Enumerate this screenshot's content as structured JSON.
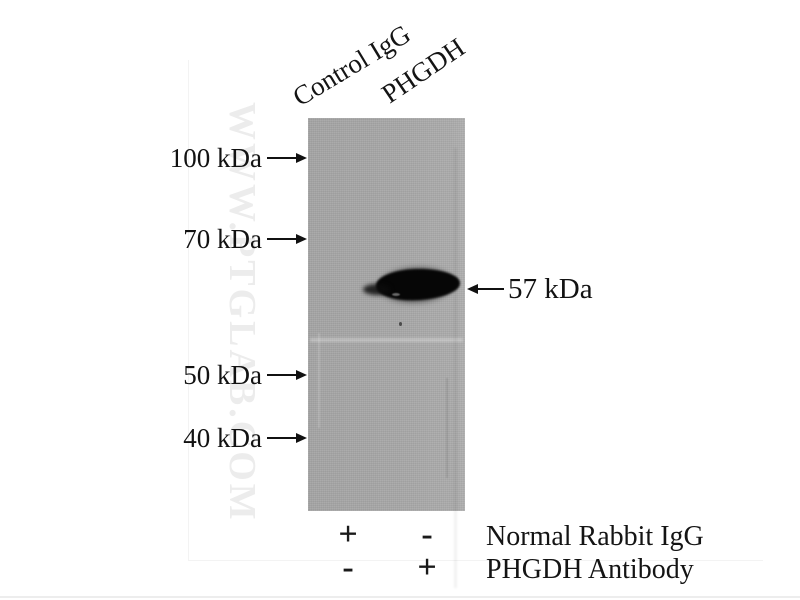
{
  "figure": {
    "type": "western-blot",
    "lane_labels": [
      {
        "label": "Control IgG"
      },
      {
        "label": "PHGDH"
      }
    ],
    "markers": [
      {
        "label": "100 kDa"
      },
      {
        "label": "70 kDa"
      },
      {
        "label": "50 kDa"
      },
      {
        "label": "40 kDa"
      }
    ],
    "band_annotation": "57 kDa",
    "watermark": "WWW.PTGLAB.COM",
    "legend_rows": [
      {
        "lane1": "+",
        "lane2": "-",
        "label": "Normal Rabbit IgG"
      },
      {
        "lane1": "-",
        "lane2": "+",
        "label": "PHGDH Antibody"
      }
    ],
    "colors": {
      "background": "#ffffff",
      "blot_gray": "#a8a8a8",
      "band_black": "#060606",
      "text_black": "#121212",
      "watermark_gray": "#ececec"
    }
  }
}
